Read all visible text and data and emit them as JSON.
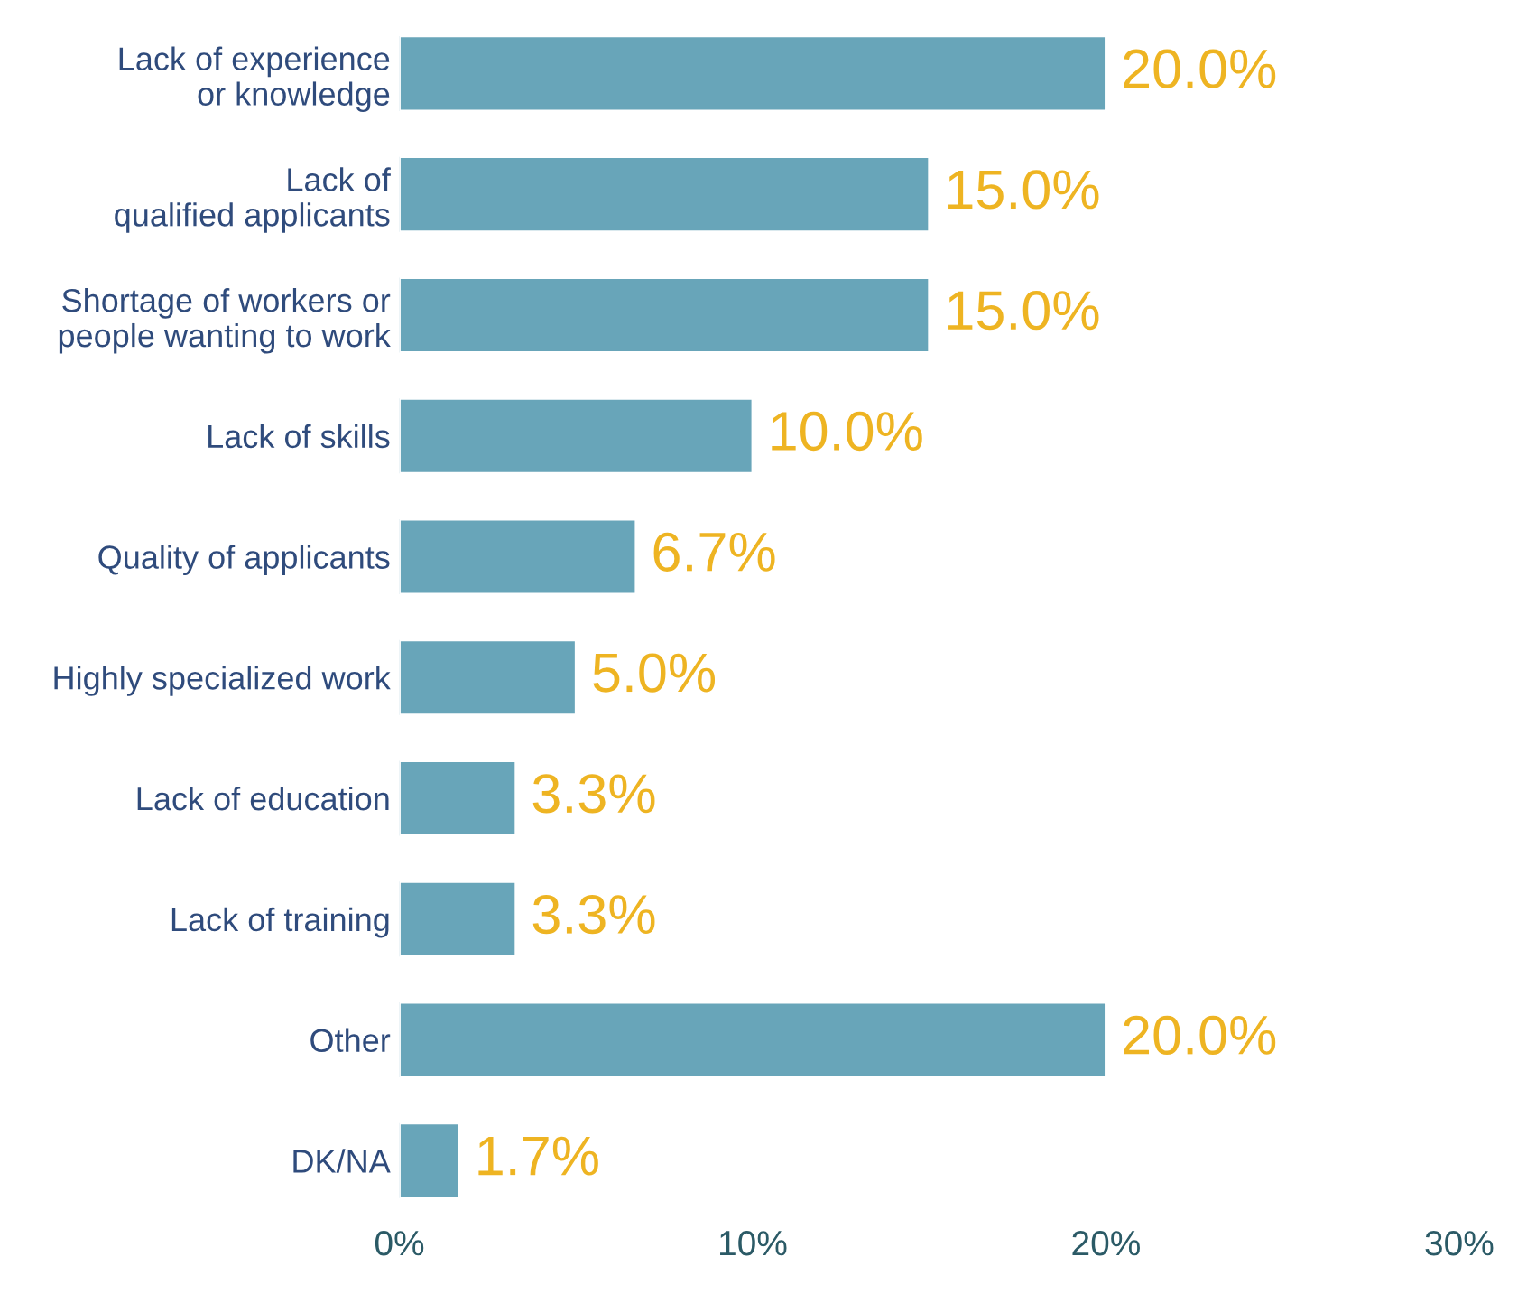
{
  "chart_data": {
    "type": "bar",
    "orientation": "horizontal",
    "categories": [
      "Lack of experience\nor knowledge",
      "Lack of\nqualified applicants",
      "Shortage of workers or\npeople wanting to work",
      "Lack of skills",
      "Quality of applicants",
      "Highly specialized work",
      "Lack of education",
      "Lack of training",
      "Other",
      "DK/NA"
    ],
    "values": [
      20.0,
      15.0,
      15.0,
      10.0,
      6.7,
      5.0,
      3.3,
      3.3,
      20.0,
      1.7
    ],
    "value_labels": [
      "20.0%",
      "15.0%",
      "15.0%",
      "10.0%",
      "6.7%",
      "5.0%",
      "3.3%",
      "3.3%",
      "20.0%",
      "1.7%"
    ],
    "color": "#68a5b9",
    "xlim": [
      0,
      30
    ],
    "xticks": [
      {
        "value": 0,
        "label": "0%"
      },
      {
        "value": 10,
        "label": "10%"
      },
      {
        "value": 20,
        "label": "20%"
      },
      {
        "value": 30,
        "label": "30%"
      }
    ],
    "grid": false,
    "legend": false
  }
}
